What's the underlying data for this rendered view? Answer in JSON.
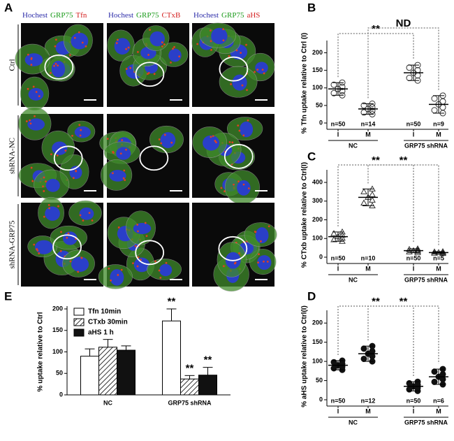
{
  "panel_a": {
    "label": "A",
    "column_headers": [
      [
        "Hochest",
        "GRP75",
        "Tfn"
      ],
      [
        "Hochest",
        "GRP75",
        "CTxB"
      ],
      [
        "Hochest",
        "GRP75",
        "aHS"
      ]
    ],
    "row_labels": [
      "Ctrl",
      "shRNA-NC",
      "shRNA-GRP75"
    ]
  },
  "chart_data": [
    {
      "label": "B",
      "type": "dot",
      "y_label": "% Tfn uptake relative to Ctrl (I)",
      "categories": [
        "I",
        "M",
        "I",
        "M"
      ],
      "groups": [
        "NC",
        "GRP75 shRNA"
      ],
      "n_labels": [
        "n=50",
        "n=14",
        "n=50",
        "n=9"
      ],
      "values": [
        97,
        40,
        143,
        53
      ],
      "errors": [
        18,
        15,
        22,
        25
      ],
      "marker": "circle",
      "color": "#333333",
      "ylim": [
        0,
        215
      ],
      "yticks": [
        0,
        50,
        100,
        150,
        200
      ],
      "annotations": [
        "**",
        "ND"
      ]
    },
    {
      "label": "C",
      "type": "dot",
      "y_label": "% CTxb uptake relative to Ctrl(I)",
      "categories": [
        "I",
        "M",
        "I",
        "M"
      ],
      "groups": [
        "NC",
        "GRP75 shRNA"
      ],
      "n_labels": [
        "n=50",
        "n=10",
        "n=50",
        "n=5"
      ],
      "values": [
        110,
        320,
        35,
        25
      ],
      "errors": [
        25,
        45,
        10,
        5
      ],
      "marker": "triangle",
      "color": "#333333",
      "ylim": [
        0,
        430
      ],
      "yticks": [
        0,
        100,
        200,
        300,
        400
      ],
      "annotations": [
        "**",
        "**"
      ]
    },
    {
      "label": "D",
      "type": "dot",
      "y_label": "% aHS uptake relative to Ctrl(I)",
      "categories": [
        "I",
        "M",
        "I",
        "M"
      ],
      "groups": [
        "NC",
        "GRP75 shRNA"
      ],
      "n_labels": [
        "n=50",
        "n=12",
        "n=50",
        "n=6"
      ],
      "values": [
        90,
        120,
        35,
        60
      ],
      "errors": [
        12,
        20,
        12,
        20
      ],
      "marker": "filled",
      "color": "#111111",
      "ylim": [
        0,
        215
      ],
      "yticks": [
        0,
        50,
        100,
        150,
        200
      ],
      "annotations": [
        "**",
        "**"
      ]
    },
    {
      "label": "E",
      "type": "bar",
      "y_label": "% uptake relative to Ctrl",
      "categories": [
        "NC",
        "GRP75 shRNA"
      ],
      "series": [
        {
          "name": "Tfn 10min",
          "color": "#ffffff",
          "values": [
            90,
            172
          ],
          "errors": [
            17,
            28
          ]
        },
        {
          "name": "CTxb 30min",
          "color": "#ffffff",
          "pattern": "hatch",
          "values": [
            111,
            37
          ],
          "errors": [
            18,
            8
          ]
        },
        {
          "name": "aHS 1 h",
          "color": "#111111",
          "values": [
            104,
            46
          ],
          "errors": [
            10,
            18
          ]
        }
      ],
      "ylim": [
        0,
        200
      ],
      "yticks": [
        0,
        50,
        100,
        150,
        200
      ],
      "annotations": [
        "**",
        "**",
        "**"
      ]
    }
  ]
}
